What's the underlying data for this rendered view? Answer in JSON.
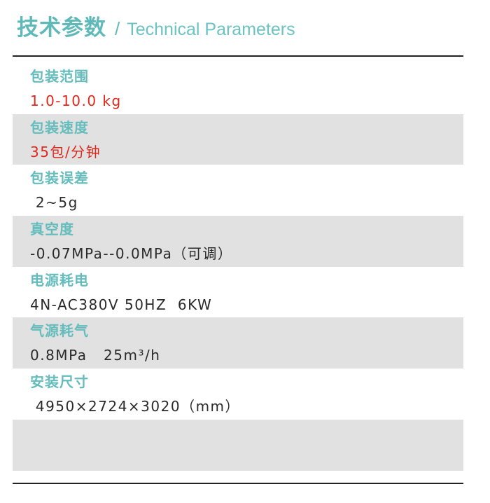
{
  "header": {
    "title_cn": "技术参数",
    "separator": "/",
    "title_en": "Technical Parameters"
  },
  "colors": {
    "accent": "#5fb9b8",
    "highlight": "#e0271b",
    "row_stripe": "#e1e1e1"
  },
  "params": [
    {
      "label": "包装范围",
      "value": "1.0-10.0 kg"
    },
    {
      "label": "包装速度",
      "value": "35包/分钟"
    },
    {
      "label": "包装误差",
      "value": " 2~5g"
    },
    {
      "label": "真空度",
      "value": "-0.07MPa--0.0MPa（可调）"
    },
    {
      "label": "电源耗电",
      "value": "4N-AC380V 50HZ  6KW"
    },
    {
      "label": "气源耗气",
      "value": "0.8MPa   25m³/h"
    },
    {
      "label": "安装尺寸",
      "value": " 4950×2724×3020（mm）"
    }
  ]
}
